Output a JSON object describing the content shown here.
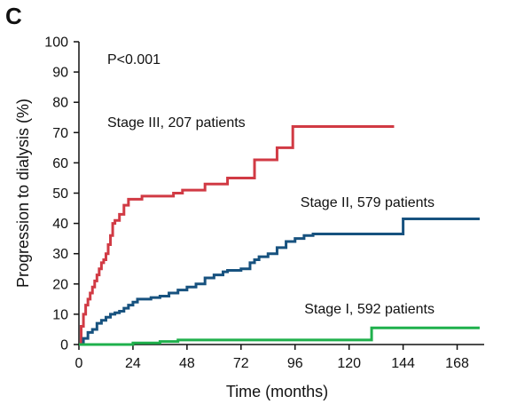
{
  "panel_label": "C",
  "chart_data": {
    "type": "line",
    "step": true,
    "xlabel": "Time (months)",
    "ylabel": "Progression to dialysis (%)",
    "xlim": [
      0,
      180
    ],
    "ylim": [
      0,
      100
    ],
    "xticks": [
      0,
      24,
      48,
      72,
      96,
      120,
      144,
      168
    ],
    "yticks": [
      0,
      10,
      20,
      30,
      40,
      50,
      60,
      70,
      80,
      90,
      100
    ],
    "grid": false,
    "annotations": [
      {
        "text": "P<0.001"
      }
    ],
    "series": [
      {
        "name": "Stage III, 207 patients",
        "color": "#d13a44",
        "x": [
          0,
          1,
          2,
          3,
          4,
          5,
          6,
          7,
          8,
          9,
          10,
          11,
          12,
          13,
          14,
          15,
          16,
          18,
          20,
          22,
          24,
          28,
          32,
          36,
          42,
          46,
          52,
          56,
          62,
          66,
          74,
          78,
          84,
          88,
          95,
          100,
          110,
          120,
          130,
          140
        ],
        "y": [
          0,
          6,
          10,
          13,
          15,
          17,
          19,
          21,
          23,
          25,
          27,
          28,
          30,
          33,
          36,
          40,
          41,
          43,
          46,
          48,
          48,
          49,
          49,
          49,
          50,
          51,
          51,
          53,
          53,
          55,
          55,
          61,
          61,
          65,
          72,
          72,
          72,
          72,
          72,
          72
        ]
      },
      {
        "name": "Stage II, 579 patients",
        "color": "#17527f",
        "x": [
          0,
          2,
          4,
          6,
          8,
          10,
          12,
          14,
          16,
          18,
          20,
          22,
          24,
          26,
          28,
          32,
          36,
          40,
          44,
          48,
          52,
          56,
          60,
          64,
          66,
          70,
          72,
          76,
          78,
          80,
          84,
          88,
          92,
          96,
          100,
          104,
          120,
          136,
          144,
          160,
          178
        ],
        "y": [
          0,
          2,
          4,
          5,
          7,
          8,
          9,
          10,
          10.5,
          11,
          12,
          13,
          14,
          15,
          15,
          15.5,
          16,
          17,
          18,
          19,
          20,
          22,
          23,
          24,
          24.5,
          24.5,
          25,
          27,
          28,
          29,
          30,
          32,
          34,
          35,
          36,
          36.5,
          36.5,
          36.5,
          41.5,
          41.5,
          41.5
        ]
      },
      {
        "name": "Stage I, 592 patients",
        "color": "#1fb04c",
        "x": [
          0,
          12,
          24,
          36,
          44,
          60,
          80,
          100,
          120,
          128,
          130,
          140,
          160,
          178
        ],
        "y": [
          0,
          0,
          0.5,
          1,
          1.5,
          1.5,
          1.5,
          1.5,
          1.5,
          1.5,
          5.5,
          5.5,
          5.5,
          5.5
        ]
      }
    ]
  }
}
